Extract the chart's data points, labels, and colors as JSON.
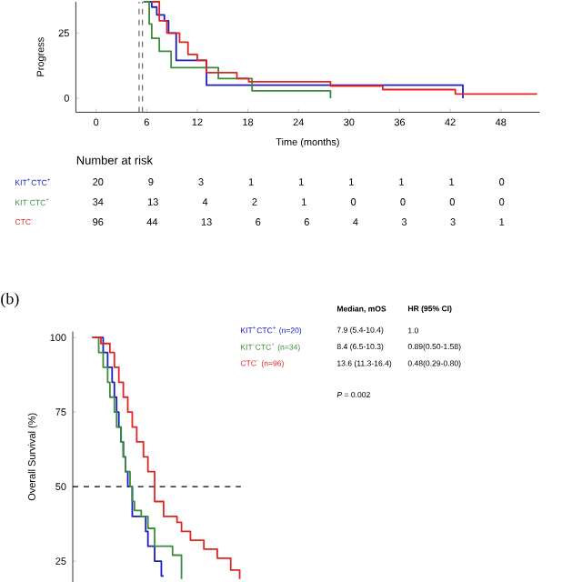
{
  "chart_data": [
    {
      "type": "step",
      "xlabel": "Time (months)",
      "ylabel": "Progress",
      "xlim": [
        -2.4,
        52.6
      ],
      "ylim": [
        -5.4,
        37
      ],
      "xticks": [
        0,
        6,
        12,
        18,
        24,
        30,
        36,
        42,
        48
      ],
      "yticks": [
        0,
        25
      ],
      "line_style": "solid",
      "series": [
        {
          "name": "KIT$^{+}$CTC$^{+}$",
          "color": "#1c1cc0",
          "x": [
            5.8,
            6.6,
            7.2,
            8.1,
            8.6,
            9.5,
            13.1,
            43.5
          ],
          "values": [
            37,
            35,
            32,
            29.7,
            25,
            14.5,
            5,
            0
          ]
        },
        {
          "name": "KIT$^{-}$CTC$^{+}$",
          "color": "#3a8c3a",
          "x": [
            5.6,
            6.3,
            6.6,
            7.5,
            8.9,
            14.5,
            18.5,
            27.8
          ],
          "values": [
            37,
            28.5,
            23,
            18,
            11.7,
            7.5,
            2.8,
            0
          ]
        },
        {
          "name": "CTC$^{-}$",
          "color": "#e02424",
          "x": [
            6.5,
            7.5,
            8.4,
            9.9,
            10.9,
            12,
            13.1,
            16.7,
            18.1,
            27.8,
            34,
            42.6,
            52.3
          ],
          "values": [
            37,
            29.7,
            25,
            21.5,
            16.8,
            14.5,
            9.8,
            7.5,
            6.3,
            4.7,
            3.3,
            1.6,
            1.6
          ]
        }
      ],
      "ref_lines": [
        {
          "axis": "x",
          "value": 5.1,
          "color": "#666666",
          "line_style": "dashed"
        },
        {
          "axis": "x",
          "value": 5.5,
          "color": "#666666",
          "line_style": "dashed"
        }
      ],
      "annotations": [
        "Number at risk",
        "20 9 3 1 1 1 1 1 0",
        "34 13 4 2 1 0 0 0 0",
        "96 44 13 6 6 4 3 3 1"
      ]
    },
    {
      "type": "step",
      "title": "(b)",
      "ylabel": "Overall Survival (%)",
      "ylim": [
        18,
        102
      ],
      "yticks": [
        25,
        50,
        75,
        100
      ],
      "tick_labels": "y",
      "line_style": "solid",
      "categories": [
        null,
        null,
        null,
        null,
        null,
        null,
        null,
        null,
        null,
        null,
        null,
        null,
        null,
        null,
        null,
        null,
        null,
        null,
        null,
        null,
        null,
        null,
        null,
        null,
        null,
        null,
        null,
        null,
        null,
        null,
        null,
        null,
        null,
        null,
        null,
        null,
        null,
        null,
        null,
        null,
        null,
        null,
        null,
        null,
        null,
        null,
        null,
        null,
        null,
        null,
        null,
        null,
        null,
        null,
        null,
        null,
        null,
        null,
        null,
        null,
        null,
        null,
        null,
        null,
        null,
        null,
        null
      ],
      "series": [
        {
          "name": "KIT$^{+}$CTC$^{+}$ (n=20)",
          "color": "#1c1cc0",
          "values": [
            null,
            null,
            100,
            100,
            100,
            95,
            95,
            90,
            90,
            85,
            80,
            75,
            70,
            65,
            60,
            55,
            50,
            50,
            40,
            40,
            40,
            40,
            40,
            40,
            35,
            30,
            30,
            30,
            25,
            25,
            25,
            20,
            20,
            null,
            null,
            null,
            null,
            null,
            null,
            null,
            null,
            null,
            null,
            null,
            null,
            null,
            null,
            null,
            null,
            null,
            null,
            null,
            null,
            null,
            null,
            null,
            null,
            null,
            null,
            null,
            null,
            null,
            null,
            null,
            null,
            null,
            null
          ]
        },
        {
          "name": "KIT$^{-}$CTC$^{+}$ (n=34)",
          "color": "#3a8c3a",
          "values": [
            100,
            100,
            100,
            95,
            95,
            90,
            90,
            85,
            80,
            80,
            75,
            70,
            70,
            65,
            60,
            55,
            55,
            50,
            45,
            42,
            42,
            42,
            40,
            40,
            40,
            36,
            36,
            36,
            30,
            30,
            30,
            30,
            30,
            30,
            30,
            30,
            27,
            27,
            27,
            27,
            19,
            null,
            null,
            null,
            null,
            null,
            null,
            null,
            null,
            null,
            null,
            null,
            null,
            null,
            null,
            null,
            null,
            null,
            null,
            null,
            null,
            null,
            null,
            null,
            null,
            null,
            null
          ]
        },
        {
          "name": "CTC$^{-}$ (n=96)",
          "color": "#e02424",
          "values": [
            100,
            100,
            100,
            100,
            98,
            98,
            98,
            98,
            95,
            95,
            90,
            90,
            85,
            85,
            80,
            80,
            75,
            75,
            70,
            70,
            65,
            65,
            65,
            60,
            60,
            55,
            55,
            55,
            45,
            45,
            45,
            45,
            40,
            40,
            40,
            40,
            40,
            40,
            38,
            38,
            35,
            35,
            35,
            35,
            32,
            32,
            32,
            32,
            32,
            32,
            29,
            29,
            29,
            29,
            29,
            29,
            26,
            26,
            26,
            26,
            26,
            26,
            22,
            22,
            22,
            22,
            19
          ]
        }
      ],
      "ref_lines": [
        {
          "axis": "y",
          "value": 50,
          "color": "#000000",
          "line_style": "dashed"
        }
      ],
      "annotations": [
        "Median, mOS",
        "HR (95% CI)",
        "7.9 (5.4-10.4)",
        "1.0",
        "8.4 (6.5-10.3)",
        "0.89(0.50-1.58)",
        "13.6 (11.3-16.4)",
        "0.48(0.29-0.80)",
        "*P* = 0.002"
      ]
    }
  ]
}
